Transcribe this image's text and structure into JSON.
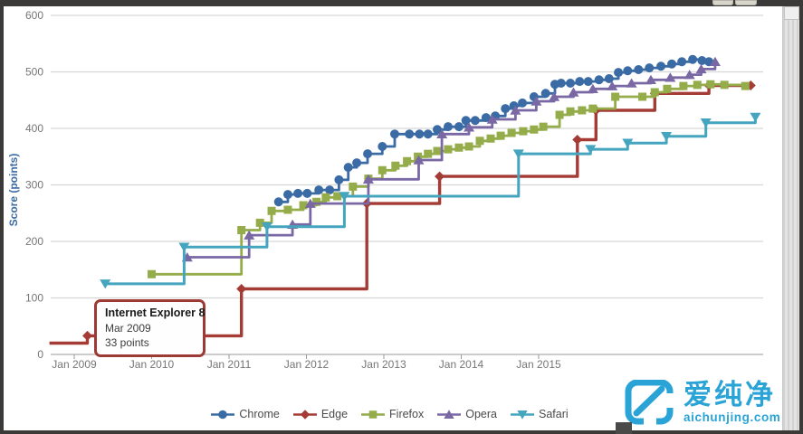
{
  "frame": {
    "scrollbar": "vertical-right"
  },
  "watermark": {
    "cn": "爱纯净",
    "domain": "aichunjing.com",
    "color": "#2aa3d6"
  },
  "chart_data": {
    "type": "line-step",
    "title": "",
    "xlabel": "",
    "ylabel": "Score (points)",
    "ylim": [
      0,
      600
    ],
    "y_ticks": [
      "0",
      "100",
      "200",
      "300",
      "400",
      "500",
      "600"
    ],
    "x_ticks": [
      "Jan 2009",
      "Jan 2010",
      "Jan 2011",
      "Jan 2012",
      "Jan 2013",
      "Jan 2014",
      "Jan 2015"
    ],
    "grid": "horizontal",
    "legend_position": "bottom-center",
    "axis_text_color": "#767676",
    "grid_color": "#d6d6d6",
    "baseline_color": "#adadad",
    "tooltip": {
      "title": "Internet Explorer 8",
      "date": "Mar 2009",
      "value": "33 points"
    },
    "series": [
      {
        "name": "Chrome",
        "color": "#3a6ba5",
        "marker": "circle",
        "line_width": 2.8,
        "points": [
          [
            2011.64,
            270
          ],
          [
            2011.76,
            283
          ],
          [
            2011.89,
            285
          ],
          [
            2012.01,
            285
          ],
          [
            2012.16,
            291
          ],
          [
            2012.3,
            291
          ],
          [
            2012.42,
            309
          ],
          [
            2012.54,
            331
          ],
          [
            2012.65,
            339
          ],
          [
            2012.79,
            355
          ],
          [
            2012.98,
            368
          ],
          [
            2013.14,
            390
          ],
          [
            2013.33,
            390
          ],
          [
            2013.46,
            390
          ],
          [
            2013.57,
            390
          ],
          [
            2013.69,
            398
          ],
          [
            2013.83,
            403
          ],
          [
            2013.97,
            403
          ],
          [
            2014.06,
            414
          ],
          [
            2014.18,
            414
          ],
          [
            2014.32,
            419
          ],
          [
            2014.44,
            422
          ],
          [
            2014.57,
            435
          ],
          [
            2014.68,
            440
          ],
          [
            2014.79,
            445
          ],
          [
            2014.94,
            456
          ],
          [
            2015.09,
            462
          ],
          [
            2015.21,
            478
          ],
          [
            2015.29,
            480
          ],
          [
            2015.41,
            480
          ],
          [
            2015.53,
            483
          ],
          [
            2015.64,
            483
          ],
          [
            2015.78,
            486
          ],
          [
            2015.91,
            488
          ],
          [
            2016.03,
            499
          ],
          [
            2016.15,
            502
          ],
          [
            2016.29,
            504
          ],
          [
            2016.43,
            507
          ],
          [
            2016.58,
            510
          ],
          [
            2016.72,
            514
          ],
          [
            2016.85,
            518
          ],
          [
            2016.99,
            522
          ],
          [
            2017.11,
            520
          ],
          [
            2017.2,
            518
          ]
        ]
      },
      {
        "name": "Edge",
        "color": "#a43b35",
        "marker": "diamond",
        "line_width": 3.4,
        "lead": [
          2008.68,
          20
        ],
        "points": [
          [
            2009.17,
            33
          ],
          [
            2011.16,
            116
          ],
          [
            2012.78,
            267
          ],
          [
            2013.72,
            315
          ],
          [
            2015.5,
            380
          ],
          [
            2015.74,
            432
          ],
          [
            2016.5,
            462
          ],
          [
            2017.2,
            476
          ],
          [
            2017.74,
            476
          ]
        ]
      },
      {
        "name": "Firefox",
        "color": "#94ac49",
        "marker": "square",
        "line_width": 2.8,
        "points": [
          [
            2010.0,
            142
          ],
          [
            2011.16,
            220
          ],
          [
            2011.4,
            233
          ],
          [
            2011.55,
            254
          ],
          [
            2011.76,
            256
          ],
          [
            2011.96,
            264
          ],
          [
            2012.13,
            270
          ],
          [
            2012.25,
            278
          ],
          [
            2012.4,
            280
          ],
          [
            2012.6,
            297
          ],
          [
            2012.8,
            311
          ],
          [
            2012.98,
            326
          ],
          [
            2013.15,
            334
          ],
          [
            2013.3,
            342
          ],
          [
            2013.44,
            350
          ],
          [
            2013.57,
            355
          ],
          [
            2013.69,
            360
          ],
          [
            2013.83,
            363
          ],
          [
            2013.97,
            366
          ],
          [
            2014.1,
            368
          ],
          [
            2014.24,
            378
          ],
          [
            2014.38,
            382
          ],
          [
            2014.51,
            387
          ],
          [
            2014.65,
            392
          ],
          [
            2014.8,
            395
          ],
          [
            2014.94,
            398
          ],
          [
            2015.06,
            403
          ],
          [
            2015.27,
            424
          ],
          [
            2015.41,
            430
          ],
          [
            2015.56,
            432
          ],
          [
            2015.7,
            435
          ],
          [
            2015.99,
            456
          ],
          [
            2016.34,
            456
          ],
          [
            2016.5,
            464
          ],
          [
            2016.66,
            470
          ],
          [
            2016.87,
            475
          ],
          [
            2017.05,
            477
          ],
          [
            2017.22,
            478
          ],
          [
            2017.4,
            477
          ],
          [
            2017.67,
            475
          ]
        ]
      },
      {
        "name": "Opera",
        "color": "#7a68a5",
        "marker": "triangle-up",
        "line_width": 2.8,
        "points": [
          [
            2010.46,
            172
          ],
          [
            2011.26,
            211
          ],
          [
            2011.82,
            230
          ],
          [
            2012.05,
            267
          ],
          [
            2012.8,
            310
          ],
          [
            2013.45,
            344
          ],
          [
            2013.75,
            390
          ],
          [
            2014.1,
            402
          ],
          [
            2014.4,
            416
          ],
          [
            2014.7,
            432
          ],
          [
            2014.97,
            448
          ],
          [
            2015.2,
            456
          ],
          [
            2015.45,
            464
          ],
          [
            2015.7,
            470
          ],
          [
            2015.95,
            475
          ],
          [
            2016.2,
            480
          ],
          [
            2016.45,
            486
          ],
          [
            2016.7,
            490
          ],
          [
            2016.95,
            495
          ],
          [
            2017.1,
            505
          ],
          [
            2017.28,
            518
          ]
        ]
      },
      {
        "name": "Safari",
        "color": "#45a5bf",
        "marker": "triangle-down",
        "line_width": 3.0,
        "points": [
          [
            2009.4,
            125
          ],
          [
            2010.42,
            190
          ],
          [
            2011.49,
            226
          ],
          [
            2012.49,
            280
          ],
          [
            2014.74,
            355
          ],
          [
            2015.67,
            363
          ],
          [
            2016.15,
            374
          ],
          [
            2016.65,
            386
          ],
          [
            2017.16,
            410
          ],
          [
            2017.8,
            420
          ]
        ]
      }
    ]
  }
}
